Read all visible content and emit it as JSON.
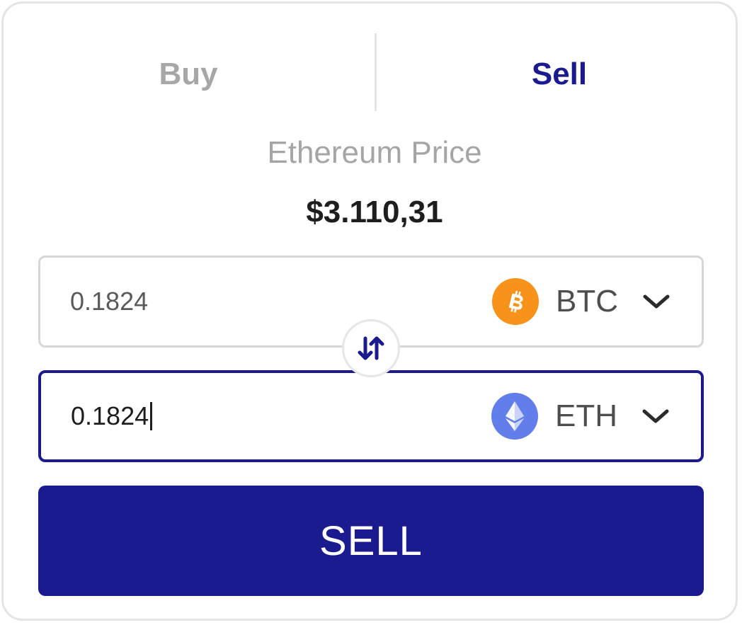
{
  "tabs": {
    "buy_label": "Buy",
    "sell_label": "Sell",
    "active": "sell"
  },
  "price": {
    "label": "Ethereum Price",
    "value": "$3.110,31"
  },
  "from_field": {
    "value": "0.1824",
    "currency": "BTC",
    "icon": "bitcoin-icon"
  },
  "to_field": {
    "value": "0.1824",
    "currency": "ETH",
    "icon": "ethereum-icon",
    "focused": true
  },
  "swap_icon": "swap-vertical-icon",
  "action_button": {
    "label": "SELL"
  },
  "colors": {
    "accent": "#1b1b8f",
    "bitcoin": "#f7931a",
    "ethereum": "#627eea",
    "inactive_text": "#a7a7a7"
  }
}
